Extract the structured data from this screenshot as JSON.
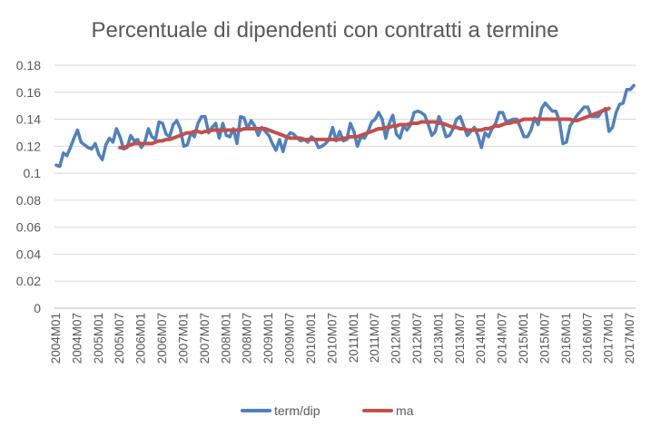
{
  "chart_data": {
    "type": "line",
    "title": "Percentuale di dipendenti con contratti a termine",
    "xlabel": "",
    "ylabel": "",
    "ylim": [
      0,
      0.18
    ],
    "y_ticks": [
      0,
      0.02,
      0.04,
      0.06,
      0.08,
      0.1,
      0.12,
      0.14,
      0.16,
      0.18
    ],
    "y_tick_labels": [
      "0",
      "0.02",
      "0.04",
      "0.06",
      "0.08",
      "0.1",
      "0.12",
      "0.14",
      "0.16",
      "0.18"
    ],
    "x_tick_labels": [
      "2004M01",
      "2004M07",
      "2005M01",
      "2005M07",
      "2006M01",
      "2006M07",
      "2007M01",
      "2007M07",
      "2008M01",
      "2008M07",
      "2009M01",
      "2009M07",
      "2010M01",
      "2010M07",
      "2011M01",
      "2011M07",
      "2012M01",
      "2012M07",
      "2013M01",
      "2013M07",
      "2014M01",
      "2014M07",
      "2015M01",
      "2015M07",
      "2016M01",
      "2016M07",
      "2017M01",
      "2017M07"
    ],
    "grid": true,
    "legend": "bottom",
    "series": [
      {
        "name": "term/dip",
        "color": "#4f81bd",
        "values": [
          0.106,
          0.105,
          0.115,
          0.113,
          0.119,
          0.126,
          0.132,
          0.123,
          0.121,
          0.119,
          0.118,
          0.122,
          0.114,
          0.11,
          0.121,
          0.126,
          0.123,
          0.133,
          0.127,
          0.118,
          0.119,
          0.128,
          0.124,
          0.125,
          0.119,
          0.123,
          0.133,
          0.127,
          0.125,
          0.138,
          0.137,
          0.129,
          0.127,
          0.136,
          0.139,
          0.133,
          0.12,
          0.121,
          0.13,
          0.127,
          0.137,
          0.142,
          0.142,
          0.13,
          0.134,
          0.137,
          0.126,
          0.137,
          0.128,
          0.127,
          0.133,
          0.122,
          0.142,
          0.141,
          0.133,
          0.139,
          0.135,
          0.128,
          0.134,
          0.131,
          0.128,
          0.122,
          0.117,
          0.125,
          0.116,
          0.126,
          0.13,
          0.129,
          0.126,
          0.124,
          0.125,
          0.123,
          0.127,
          0.125,
          0.119,
          0.12,
          0.122,
          0.125,
          0.134,
          0.124,
          0.131,
          0.124,
          0.125,
          0.137,
          0.131,
          0.12,
          0.127,
          0.126,
          0.131,
          0.138,
          0.14,
          0.145,
          0.14,
          0.126,
          0.137,
          0.143,
          0.129,
          0.126,
          0.135,
          0.132,
          0.136,
          0.145,
          0.146,
          0.145,
          0.143,
          0.136,
          0.128,
          0.131,
          0.142,
          0.136,
          0.127,
          0.128,
          0.133,
          0.14,
          0.142,
          0.135,
          0.128,
          0.131,
          0.134,
          0.128,
          0.119,
          0.13,
          0.127,
          0.133,
          0.137,
          0.145,
          0.145,
          0.138,
          0.139,
          0.14,
          0.14,
          0.134,
          0.127,
          0.127,
          0.132,
          0.141,
          0.136,
          0.148,
          0.152,
          0.149,
          0.146,
          0.146,
          0.139,
          0.122,
          0.123,
          0.135,
          0.139,
          0.143,
          0.146,
          0.149,
          0.149,
          0.142,
          0.142,
          0.142,
          0.146,
          0.148,
          0.131,
          0.134,
          0.145,
          0.151,
          0.152,
          0.162,
          0.162,
          0.165
        ]
      },
      {
        "name": "ma",
        "color": "#c0504d",
        "start_index": 18,
        "values": [
          0.119,
          0.119,
          0.12,
          0.121,
          0.122,
          0.122,
          0.122,
          0.122,
          0.122,
          0.122,
          0.123,
          0.124,
          0.124,
          0.125,
          0.125,
          0.126,
          0.127,
          0.128,
          0.129,
          0.13,
          0.13,
          0.131,
          0.131,
          0.13,
          0.131,
          0.131,
          0.132,
          0.132,
          0.132,
          0.132,
          0.132,
          0.132,
          0.132,
          0.132,
          0.132,
          0.133,
          0.133,
          0.133,
          0.133,
          0.133,
          0.133,
          0.133,
          0.132,
          0.131,
          0.13,
          0.129,
          0.128,
          0.127,
          0.126,
          0.126,
          0.126,
          0.126,
          0.125,
          0.125,
          0.125,
          0.125,
          0.125,
          0.125,
          0.125,
          0.125,
          0.125,
          0.125,
          0.125,
          0.126,
          0.126,
          0.127,
          0.127,
          0.127,
          0.128,
          0.129,
          0.13,
          0.131,
          0.132,
          0.133,
          0.133,
          0.134,
          0.134,
          0.135,
          0.135,
          0.136,
          0.136,
          0.136,
          0.137,
          0.137,
          0.137,
          0.138,
          0.138,
          0.138,
          0.138,
          0.138,
          0.137,
          0.137,
          0.136,
          0.135,
          0.134,
          0.134,
          0.133,
          0.133,
          0.132,
          0.132,
          0.132,
          0.132,
          0.132,
          0.133,
          0.133,
          0.134,
          0.135,
          0.135,
          0.136,
          0.137,
          0.137,
          0.138,
          0.138,
          0.139,
          0.14,
          0.14,
          0.14,
          0.14,
          0.14,
          0.14,
          0.14,
          0.14,
          0.14,
          0.14,
          0.14,
          0.14,
          0.14,
          0.14,
          0.139,
          0.139,
          0.14,
          0.141,
          0.142,
          0.143,
          0.144,
          0.145,
          0.146,
          0.147,
          0.148
        ]
      }
    ]
  }
}
